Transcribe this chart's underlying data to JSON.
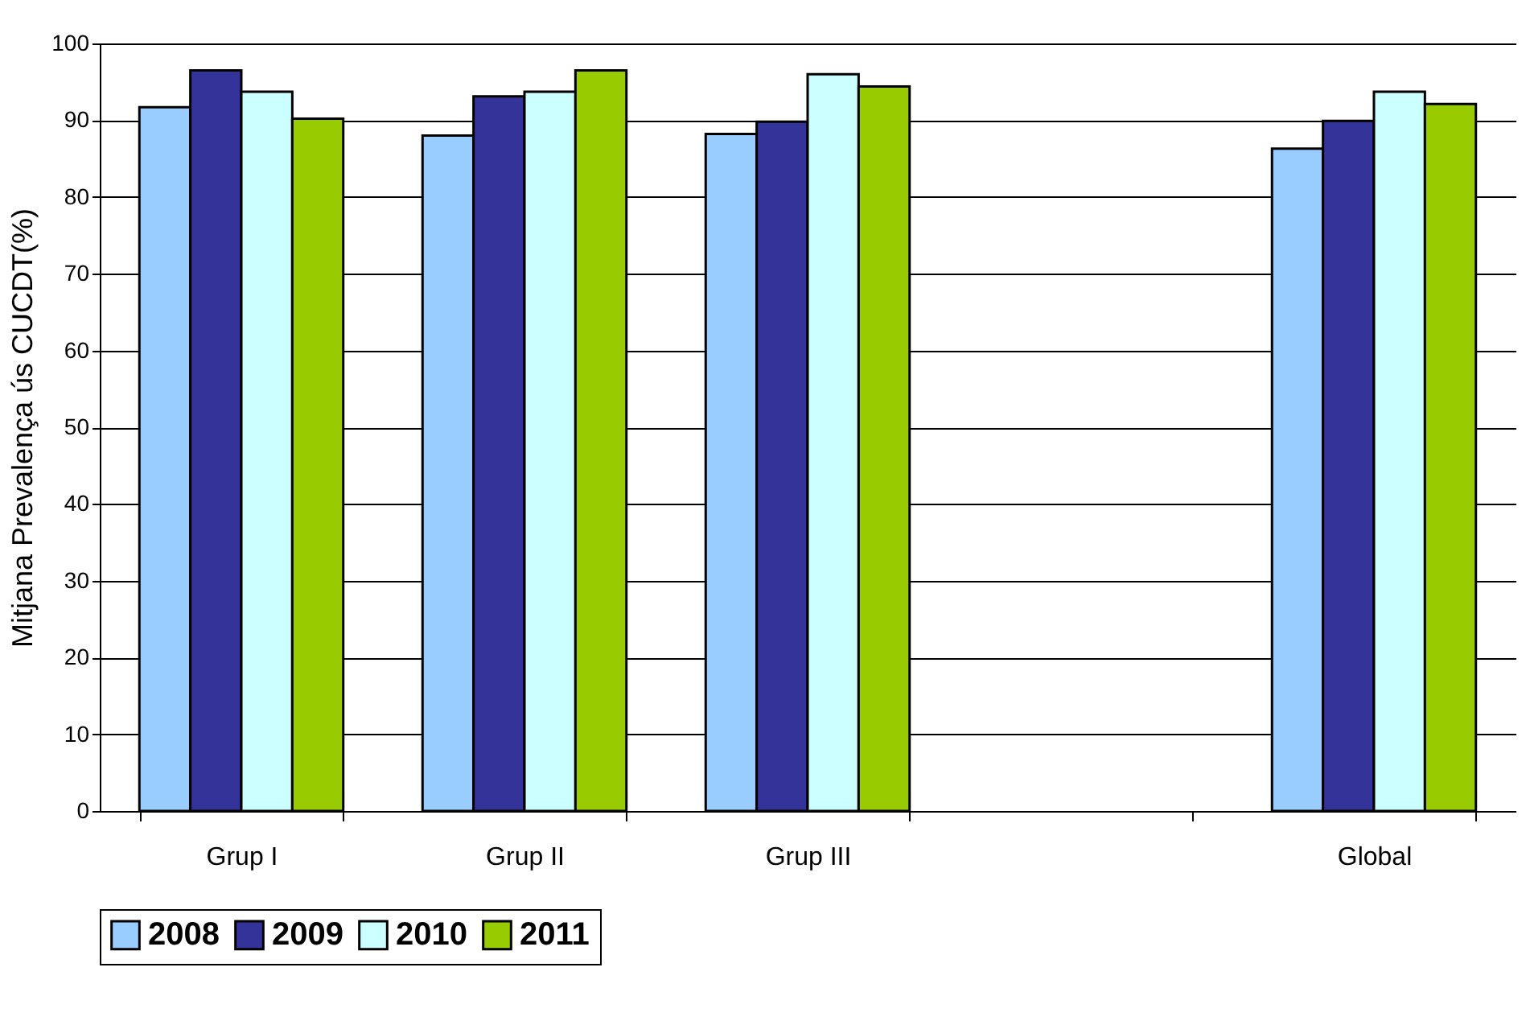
{
  "chart_data": {
    "type": "bar",
    "ylabel": "Mitjana Prevalença ús CUCDT(%)",
    "categories": [
      "Grup I",
      "Grup II",
      "Grup III",
      null,
      "Global"
    ],
    "series": [
      {
        "name": "2008",
        "color": "#99ccff",
        "values": [
          91.7,
          88,
          88.2,
          null,
          86.3
        ]
      },
      {
        "name": "2009",
        "color": "#333399",
        "values": [
          96.5,
          93.1,
          89.8,
          null,
          89.9
        ]
      },
      {
        "name": "2010",
        "color": "#ccffff",
        "values": [
          93.7,
          93.7,
          96,
          null,
          93.7
        ]
      },
      {
        "name": "2011",
        "color": "#99cc00",
        "values": [
          90.2,
          96.5,
          94.4,
          null,
          92.1
        ]
      }
    ],
    "ylim": [
      0,
      100
    ],
    "yticks": [
      0,
      10,
      20,
      30,
      40,
      50,
      60,
      70,
      80,
      90,
      100
    ],
    "grid": "y",
    "legend": "bottom"
  }
}
